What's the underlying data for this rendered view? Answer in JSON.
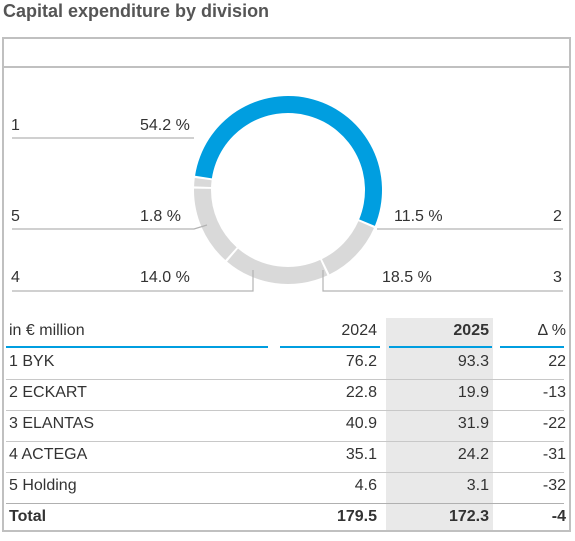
{
  "title": "Capital expenditure by division",
  "chart_data": {
    "type": "pie",
    "style": "donut",
    "segments": [
      {
        "id": "1",
        "value": 54.2,
        "label": "54.2 %",
        "color": "#009ee0"
      },
      {
        "id": "2",
        "value": 11.5,
        "label": "11.5 %",
        "color": "#d9d9d9"
      },
      {
        "id": "3",
        "value": 18.5,
        "label": "18.5 %",
        "color": "#d9d9d9"
      },
      {
        "id": "4",
        "value": 14.0,
        "label": "14.0 %",
        "color": "#d9d9d9"
      },
      {
        "id": "5",
        "value": 1.8,
        "label": "1.8 %",
        "color": "#d9d9d9"
      }
    ]
  },
  "table": {
    "headers": [
      "in € million",
      "2024",
      "2025",
      "Δ %"
    ],
    "rows": [
      [
        "1 BYK",
        "76.2",
        "93.3",
        "22"
      ],
      [
        "2 ECKART",
        "22.8",
        "19.9",
        "-13"
      ],
      [
        "3 ELANTAS",
        "40.9",
        "31.9",
        "-22"
      ],
      [
        "4 ACTEGA",
        "35.1",
        "24.2",
        "-31"
      ],
      [
        "5 Holding",
        "4.6",
        "3.1",
        "-32"
      ]
    ],
    "total": [
      "Total",
      "179.5",
      "172.3",
      "-4"
    ]
  },
  "colors": {
    "accent": "#009ee0",
    "neutral": "#d9d9d9"
  }
}
